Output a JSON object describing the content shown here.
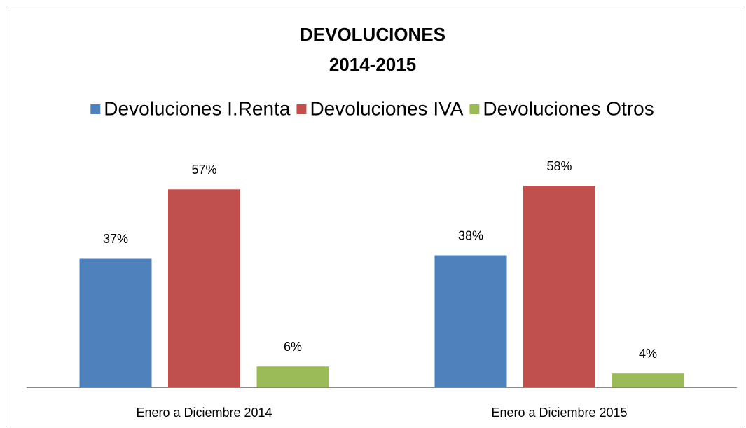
{
  "chart_data": {
    "type": "bar",
    "title": [
      "DEVOLUCIONES",
      "2014-2015"
    ],
    "categories": [
      "Enero a Diciembre 2014",
      "Enero a Diciembre 2015"
    ],
    "series": [
      {
        "name": "Devoluciones I.Renta",
        "color": "#4f81bd",
        "values": [
          37,
          38
        ],
        "value_labels": [
          "37%",
          "38%"
        ]
      },
      {
        "name": "Devoluciones IVA",
        "color": "#c0504d",
        "values": [
          57,
          58
        ],
        "value_labels": [
          "57%",
          "58%"
        ]
      },
      {
        "name": "Devoluciones Otros",
        "color": "#9bbb59",
        "values": [
          6,
          4
        ],
        "value_labels": [
          "6%",
          "4%"
        ]
      }
    ],
    "legend": "top"
  }
}
